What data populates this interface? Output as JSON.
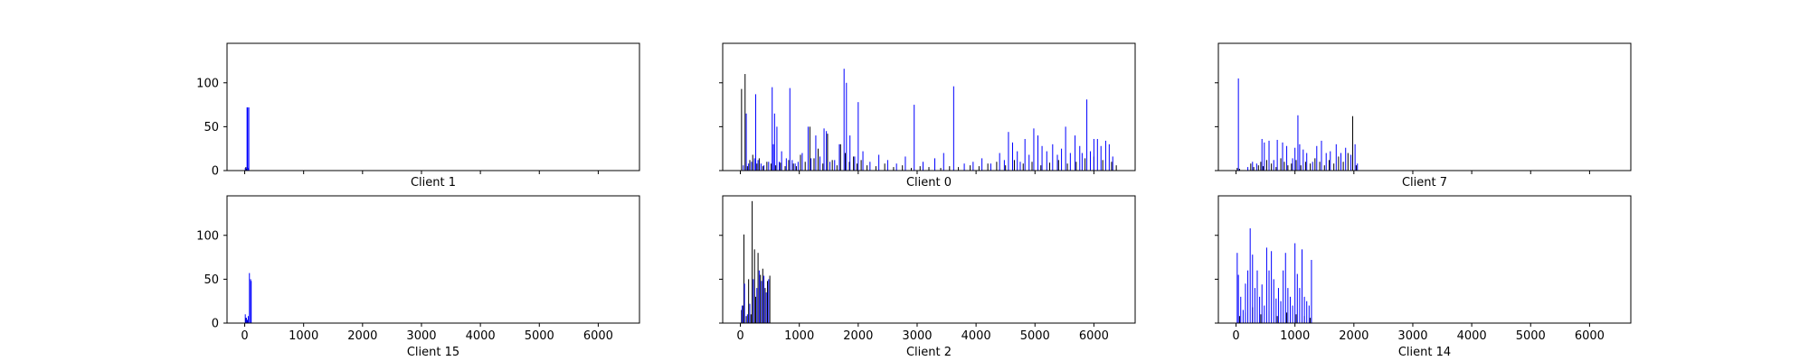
{
  "chart_data": [
    {
      "type": "bar",
      "title": "",
      "xlabel": "Client 1",
      "ylabel": "",
      "xlim": [
        -300,
        6700
      ],
      "ylim": [
        0,
        145
      ],
      "xticks": [
        0,
        1000,
        2000,
        3000,
        4000,
        5000,
        6000
      ],
      "yticks": [
        0,
        50,
        100
      ],
      "show_x_tick_labels": false,
      "show_y_tick_labels": true,
      "series": [
        {
          "color": "#000000",
          "x": [
            20,
            30
          ],
          "values": [
            4,
            2
          ]
        },
        {
          "color": "#0000ff",
          "x": [
            10,
            40,
            50,
            60,
            70
          ],
          "values": [
            3,
            72,
            72,
            3,
            72
          ]
        }
      ]
    },
    {
      "type": "bar",
      "title": "",
      "xlabel": "Client 0",
      "ylabel": "",
      "xlim": [
        -300,
        6700
      ],
      "ylim": [
        0,
        145
      ],
      "xticks": [
        0,
        1000,
        2000,
        3000,
        4000,
        5000,
        6000
      ],
      "yticks": [
        0,
        50,
        100
      ],
      "show_x_tick_labels": false,
      "show_y_tick_labels": false,
      "series": [
        {
          "color": "#000000",
          "x": [
            20,
            80,
            120,
            160,
            210,
            280,
            320,
            380,
            450,
            520,
            600,
            680,
            760,
            820,
            900,
            950,
            1020,
            1100,
            1180,
            1250,
            1320,
            1400,
            1480,
            1560,
            1640,
            1700,
            1780,
            1850,
            1920,
            1980,
            2050,
            2150,
            2300,
            2450,
            2600,
            2750,
            2900,
            3050,
            3200,
            3400,
            3550,
            3700,
            3900,
            4050,
            4200,
            4350,
            4500,
            4650,
            4800,
            4950,
            5100,
            5250,
            5400,
            5550,
            5700,
            5850,
            6000,
            6150,
            6300,
            6380
          ],
          "values": [
            93,
            110,
            5,
            12,
            18,
            8,
            14,
            5,
            10,
            8,
            6,
            9,
            5,
            12,
            8,
            5,
            18,
            10,
            50,
            14,
            25,
            8,
            42,
            12,
            6,
            30,
            20,
            10,
            16,
            8,
            12,
            6,
            5,
            8,
            4,
            6,
            3,
            5,
            4,
            3,
            5,
            4,
            6,
            5,
            8,
            10,
            6,
            12,
            8,
            10,
            6,
            9,
            12,
            8,
            10,
            14,
            16,
            12,
            10,
            6
          ]
        },
        {
          "color": "#0000ff",
          "x": [
            50,
            100,
            140,
            190,
            240,
            260,
            300,
            350,
            400,
            480,
            540,
            560,
            580,
            620,
            660,
            700,
            780,
            840,
            880,
            930,
            980,
            1050,
            1150,
            1200,
            1280,
            1350,
            1420,
            1460,
            1520,
            1600,
            1680,
            1760,
            1800,
            1860,
            1940,
            2000,
            2080,
            2200,
            2350,
            2500,
            2650,
            2800,
            2950,
            3100,
            3300,
            3450,
            3620,
            3800,
            3950,
            4100,
            4250,
            4400,
            4480,
            4550,
            4620,
            4700,
            4750,
            4830,
            4900,
            4980,
            5050,
            5120,
            5200,
            5300,
            5380,
            5450,
            5520,
            5600,
            5680,
            5760,
            5800,
            5880,
            5940,
            6000,
            6060,
            6120,
            6200,
            6260,
            6320
          ],
          "values": [
            6,
            65,
            8,
            10,
            14,
            87,
            12,
            8,
            6,
            10,
            95,
            30,
            65,
            50,
            10,
            22,
            14,
            94,
            12,
            8,
            10,
            20,
            50,
            14,
            40,
            16,
            48,
            45,
            10,
            12,
            30,
            116,
            100,
            40,
            16,
            78,
            22,
            10,
            18,
            12,
            8,
            16,
            75,
            10,
            14,
            20,
            96,
            8,
            10,
            14,
            8,
            20,
            12,
            44,
            32,
            22,
            10,
            36,
            18,
            48,
            40,
            28,
            22,
            30,
            18,
            25,
            50,
            20,
            40,
            28,
            20,
            81,
            22,
            36,
            36,
            28,
            34,
            30,
            16
          ]
        }
      ]
    },
    {
      "type": "bar",
      "title": "",
      "xlabel": "Client 7",
      "ylabel": "",
      "xlim": [
        -300,
        6700
      ],
      "ylim": [
        0,
        145
      ],
      "xticks": [
        0,
        1000,
        2000,
        3000,
        4000,
        5000,
        6000
      ],
      "yticks": [
        0,
        50,
        100
      ],
      "show_x_tick_labels": false,
      "show_y_tick_labels": false,
      "series": [
        {
          "color": "#000000",
          "x": [
            20,
            60,
            250,
            300,
            380,
            420,
            460,
            520,
            600,
            680,
            760,
            820,
            880,
            940,
            1020,
            1100,
            1180,
            1260,
            1340,
            1420,
            1500,
            1580,
            1660,
            1740,
            1820,
            1900,
            1980,
            2040
          ],
          "values": [
            3,
            2,
            8,
            4,
            6,
            10,
            5,
            12,
            8,
            4,
            14,
            10,
            6,
            8,
            12,
            6,
            10,
            8,
            14,
            10,
            6,
            12,
            8,
            16,
            10,
            20,
            62,
            6
          ]
        },
        {
          "color": "#0000ff",
          "x": [
            40,
            200,
            280,
            350,
            440,
            480,
            560,
            640,
            700,
            790,
            860,
            960,
            1000,
            1050,
            1080,
            1140,
            1200,
            1300,
            1370,
            1450,
            1530,
            1600,
            1700,
            1780,
            1860,
            1950,
            2020,
            2060
          ],
          "values": [
            105,
            4,
            10,
            8,
            36,
            32,
            34,
            12,
            35,
            32,
            28,
            14,
            26,
            63,
            30,
            24,
            20,
            10,
            28,
            34,
            20,
            22,
            30,
            20,
            26,
            18,
            30,
            8
          ]
        }
      ]
    },
    {
      "type": "bar",
      "title": "",
      "xlabel": "Client 15",
      "ylabel": "",
      "xlim": [
        -300,
        6700
      ],
      "ylim": [
        0,
        145
      ],
      "xticks": [
        0,
        1000,
        2000,
        3000,
        4000,
        5000,
        6000
      ],
      "yticks": [
        0,
        50,
        100
      ],
      "show_x_tick_labels": true,
      "show_y_tick_labels": true,
      "series": [
        {
          "color": "#000000",
          "x": [
            20,
            40
          ],
          "values": [
            6,
            3
          ]
        },
        {
          "color": "#0000ff",
          "x": [
            10,
            30,
            50,
            60,
            80,
            100,
            110
          ],
          "values": [
            10,
            6,
            4,
            8,
            57,
            50,
            48
          ]
        }
      ]
    },
    {
      "type": "bar",
      "title": "",
      "xlabel": "Client 2",
      "ylabel": "",
      "xlim": [
        -300,
        6700
      ],
      "ylim": [
        0,
        145
      ],
      "xticks": [
        0,
        1000,
        2000,
        3000,
        4000,
        5000,
        6000
      ],
      "yticks": [
        0,
        50,
        100
      ],
      "show_x_tick_labels": true,
      "show_y_tick_labels": false,
      "series": [
        {
          "color": "#000000",
          "x": [
            20,
            40,
            60,
            100,
            140,
            180,
            200,
            240,
            260,
            300,
            340,
            380,
            420,
            460,
            500
          ],
          "values": [
            15,
            20,
            101,
            8,
            50,
            10,
            139,
            84,
            30,
            80,
            55,
            62,
            40,
            48,
            54
          ]
        },
        {
          "color": "#0000ff",
          "x": [
            30,
            70,
            120,
            160,
            220,
            280,
            320,
            360,
            400,
            440,
            480
          ],
          "values": [
            20,
            45,
            10,
            22,
            50,
            40,
            60,
            48,
            54,
            35,
            50
          ]
        }
      ]
    },
    {
      "type": "bar",
      "title": "",
      "xlabel": "Client 14",
      "ylabel": "",
      "xlim": [
        -300,
        6700
      ],
      "ylim": [
        0,
        145
      ],
      "xticks": [
        0,
        1000,
        2000,
        3000,
        4000,
        5000,
        6000
      ],
      "yticks": [
        0,
        50,
        100
      ],
      "show_x_tick_labels": true,
      "show_y_tick_labels": false,
      "series": [
        {
          "color": "#000000",
          "x": [
            60,
            160,
            280,
            420,
            560,
            700,
            860,
            1020,
            1160,
            1260
          ],
          "values": [
            8,
            12,
            18,
            10,
            14,
            8,
            12,
            10,
            8,
            6
          ]
        },
        {
          "color": "#0000ff",
          "x": [
            20,
            40,
            80,
            120,
            160,
            200,
            240,
            280,
            320,
            360,
            400,
            440,
            480,
            520,
            560,
            600,
            640,
            680,
            720,
            760,
            800,
            840,
            880,
            920,
            960,
            1000,
            1040,
            1080,
            1120,
            1160,
            1200,
            1240,
            1280
          ],
          "values": [
            80,
            55,
            30,
            15,
            45,
            60,
            108,
            78,
            40,
            60,
            30,
            44,
            20,
            86,
            60,
            82,
            50,
            28,
            40,
            25,
            60,
            80,
            40,
            30,
            20,
            91,
            56,
            40,
            84,
            30,
            25,
            20,
            72
          ]
        }
      ]
    }
  ]
}
